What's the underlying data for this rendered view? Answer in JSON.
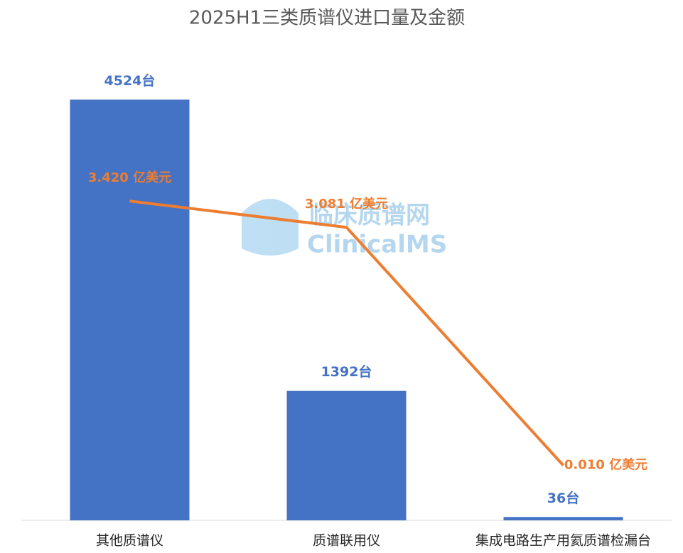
{
  "chart_data": {
    "type": "bar-line",
    "title": "2025H1三类质谱仪进口量及金额",
    "watermark": [
      "临床质谱网",
      "ClinicalMS"
    ],
    "categories": [
      "其他质谱仪",
      "质谱联用仪",
      "集成电路生产用氦质谱检漏台"
    ],
    "series": [
      {
        "type": "bar",
        "color": "#4472c4",
        "values": [
          4524,
          1392,
          36
        ],
        "value_labels": [
          "4524台",
          "1392台",
          "36台"
        ]
      },
      {
        "type": "line",
        "axis": "y2",
        "color": "#ed7d31",
        "values": [
          3.42,
          3.081,
          0.01
        ],
        "value_labels": [
          "3.420 亿美元",
          "3.081 亿美元",
          "0.010 亿美元"
        ]
      }
    ],
    "ylim": [
      0,
      5000
    ],
    "y2lim": [
      -0.7,
      5.3
    ]
  }
}
